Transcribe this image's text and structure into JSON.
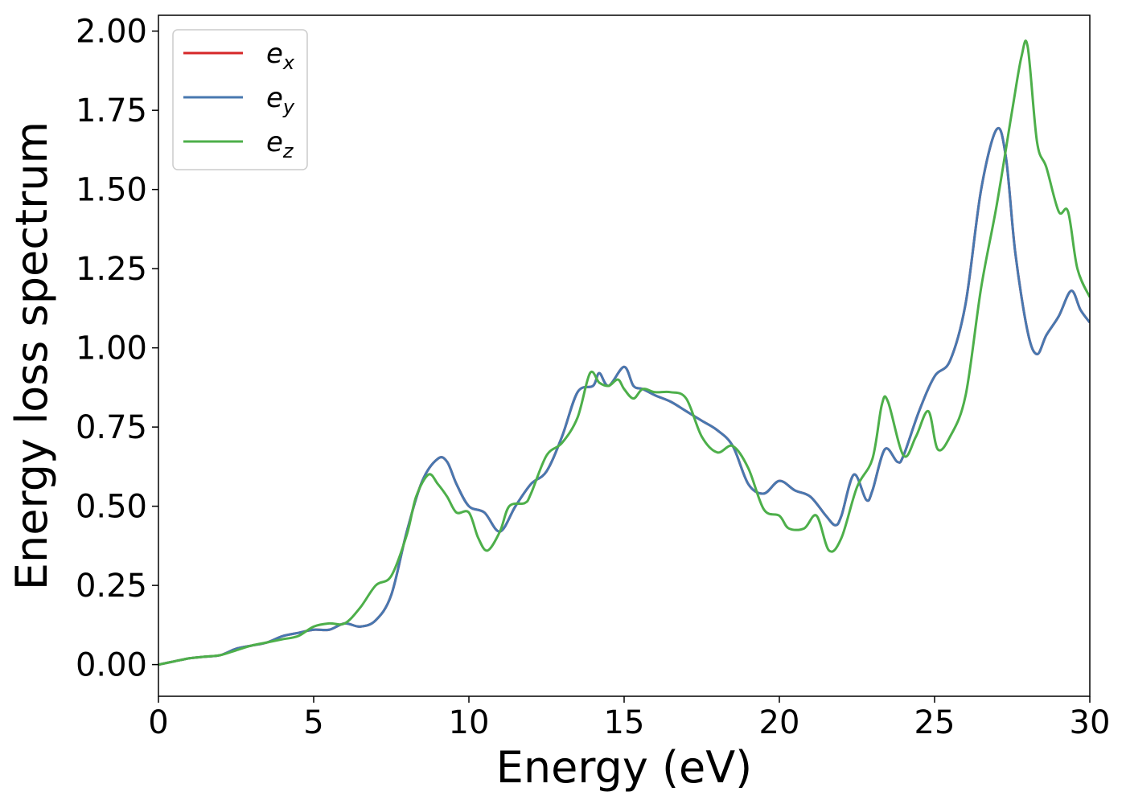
{
  "chart_data": {
    "type": "line",
    "title": "",
    "xlabel": "Energy (eV)",
    "ylabel": "Energy loss spectrum",
    "xlim": [
      0,
      30
    ],
    "ylim": [
      -0.1,
      2.05
    ],
    "xticks": [
      0,
      5,
      10,
      15,
      20,
      25,
      30
    ],
    "xtick_labels": [
      "0",
      "5",
      "10",
      "15",
      "20",
      "25",
      "30"
    ],
    "yticks": [
      0,
      0.25,
      0.5,
      0.75,
      1.0,
      1.25,
      1.5,
      1.75,
      2.0
    ],
    "ytick_labels": [
      "0.00",
      "0.25",
      "0.50",
      "0.75",
      "1.00",
      "1.25",
      "1.50",
      "1.75",
      "2.00"
    ],
    "grid": false,
    "legend_position": "top-left",
    "series": [
      {
        "name": "e_x",
        "label_base": "e",
        "label_sub": "x",
        "color": "#d62728",
        "x": [
          0,
          0.5,
          1,
          1.5,
          2,
          2.5,
          3,
          3.5,
          4,
          4.5,
          5,
          5.5,
          6,
          6.5,
          7,
          7.5,
          8,
          8.5,
          9,
          9.3,
          9.6,
          10,
          10.5,
          11,
          11.5,
          12,
          12.5,
          13,
          13.5,
          14,
          14.2,
          14.5,
          15,
          15.3,
          15.6,
          16,
          16.5,
          17,
          17.5,
          18,
          18.5,
          19,
          19.5,
          20,
          20.5,
          21,
          21.5,
          21.8,
          22,
          22.4,
          22.8,
          23,
          23.4,
          23.8,
          24,
          24.5,
          25,
          25.5,
          26,
          26.5,
          27,
          27.3,
          27.6,
          28,
          28.3,
          28.6,
          29,
          29.4,
          29.7,
          30
        ],
        "y": [
          0,
          0.01,
          0.02,
          0.025,
          0.03,
          0.05,
          0.06,
          0.07,
          0.09,
          0.1,
          0.11,
          0.11,
          0.13,
          0.12,
          0.14,
          0.22,
          0.42,
          0.58,
          0.65,
          0.64,
          0.57,
          0.5,
          0.48,
          0.42,
          0.5,
          0.57,
          0.61,
          0.72,
          0.86,
          0.88,
          0.92,
          0.88,
          0.94,
          0.88,
          0.87,
          0.85,
          0.83,
          0.8,
          0.77,
          0.74,
          0.69,
          0.57,
          0.54,
          0.58,
          0.55,
          0.53,
          0.47,
          0.44,
          0.47,
          0.6,
          0.52,
          0.55,
          0.68,
          0.64,
          0.66,
          0.8,
          0.91,
          0.96,
          1.14,
          1.5,
          1.69,
          1.6,
          1.3,
          1.05,
          0.98,
          1.04,
          1.1,
          1.18,
          1.12,
          1.08
        ]
      },
      {
        "name": "e_y",
        "label_base": "e",
        "label_sub": "y",
        "color": "#4878b0",
        "x": [
          0,
          0.5,
          1,
          1.5,
          2,
          2.5,
          3,
          3.5,
          4,
          4.5,
          5,
          5.5,
          6,
          6.5,
          7,
          7.5,
          8,
          8.5,
          9,
          9.3,
          9.6,
          10,
          10.5,
          11,
          11.5,
          12,
          12.5,
          13,
          13.5,
          14,
          14.2,
          14.5,
          15,
          15.3,
          15.6,
          16,
          16.5,
          17,
          17.5,
          18,
          18.5,
          19,
          19.5,
          20,
          20.5,
          21,
          21.5,
          21.8,
          22,
          22.4,
          22.8,
          23,
          23.4,
          23.8,
          24,
          24.5,
          25,
          25.5,
          26,
          26.5,
          27,
          27.3,
          27.6,
          28,
          28.3,
          28.6,
          29,
          29.4,
          29.7,
          30
        ],
        "y": [
          0,
          0.01,
          0.02,
          0.025,
          0.03,
          0.05,
          0.06,
          0.07,
          0.09,
          0.1,
          0.11,
          0.11,
          0.13,
          0.12,
          0.14,
          0.22,
          0.42,
          0.58,
          0.65,
          0.64,
          0.57,
          0.5,
          0.48,
          0.42,
          0.5,
          0.57,
          0.61,
          0.72,
          0.86,
          0.88,
          0.92,
          0.88,
          0.94,
          0.88,
          0.87,
          0.85,
          0.83,
          0.8,
          0.77,
          0.74,
          0.69,
          0.57,
          0.54,
          0.58,
          0.55,
          0.53,
          0.47,
          0.44,
          0.47,
          0.6,
          0.52,
          0.55,
          0.68,
          0.64,
          0.66,
          0.8,
          0.91,
          0.96,
          1.14,
          1.5,
          1.69,
          1.6,
          1.3,
          1.05,
          0.98,
          1.04,
          1.1,
          1.18,
          1.12,
          1.08
        ]
      },
      {
        "name": "e_z",
        "label_base": "e",
        "label_sub": "z",
        "color": "#4daf4a",
        "x": [
          0,
          0.5,
          1,
          1.5,
          2,
          2.5,
          3,
          3.5,
          4,
          4.5,
          5,
          5.5,
          6,
          6.5,
          7,
          7.5,
          8,
          8.3,
          8.7,
          9,
          9.3,
          9.6,
          10,
          10.3,
          10.6,
          11,
          11.3,
          11.8,
          12,
          12.5,
          13,
          13.5,
          13.9,
          14.2,
          14.5,
          14.8,
          15,
          15.3,
          15.6,
          16,
          16.5,
          17,
          17.5,
          18,
          18.5,
          19,
          19.5,
          20,
          20.3,
          20.8,
          21.2,
          21.6,
          22,
          22.5,
          23,
          23.3,
          23.5,
          24,
          24.4,
          24.8,
          25.1,
          25.5,
          26,
          26.5,
          27,
          27.5,
          27.8,
          28,
          28.3,
          28.6,
          29,
          29.3,
          29.6,
          30
        ],
        "y": [
          0,
          0.01,
          0.02,
          0.025,
          0.03,
          0.045,
          0.06,
          0.07,
          0.08,
          0.09,
          0.12,
          0.13,
          0.13,
          0.18,
          0.25,
          0.28,
          0.41,
          0.53,
          0.6,
          0.57,
          0.53,
          0.48,
          0.48,
          0.4,
          0.36,
          0.42,
          0.5,
          0.51,
          0.54,
          0.66,
          0.7,
          0.78,
          0.92,
          0.89,
          0.88,
          0.9,
          0.87,
          0.84,
          0.87,
          0.86,
          0.86,
          0.84,
          0.72,
          0.67,
          0.69,
          0.62,
          0.49,
          0.47,
          0.43,
          0.43,
          0.47,
          0.36,
          0.4,
          0.56,
          0.65,
          0.82,
          0.83,
          0.66,
          0.72,
          0.8,
          0.68,
          0.72,
          0.85,
          1.19,
          1.45,
          1.75,
          1.92,
          1.95,
          1.65,
          1.57,
          1.43,
          1.43,
          1.25,
          1.16
        ]
      }
    ]
  }
}
